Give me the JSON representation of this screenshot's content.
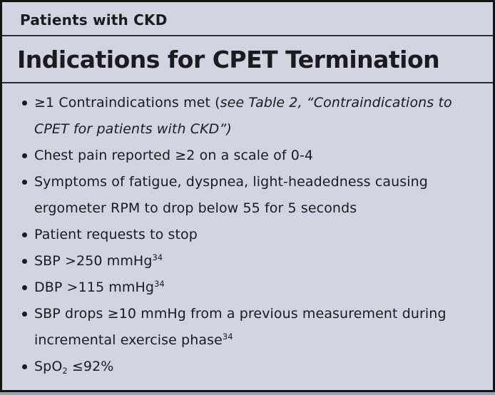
{
  "panel": {
    "header": "Patients with CKD",
    "title": "Indications for CPET Termination"
  },
  "list": {
    "items": [
      {
        "segments": [
          {
            "t": "≥1 Contraindications met ("
          },
          {
            "t": "see Table 2, “Contraindications to CPET for patients with CKD”)",
            "s": "i"
          }
        ]
      },
      {
        "segments": [
          {
            "t": "Chest pain reported ≥2 on a scale of 0-4"
          }
        ]
      },
      {
        "segments": [
          {
            "t": "Symptoms of fatigue, dyspnea, light-headedness causing ergometer RPM to drop below 55 for 5 seconds"
          }
        ]
      },
      {
        "segments": [
          {
            "t": "Patient requests to stop"
          }
        ]
      },
      {
        "segments": [
          {
            "t": "SBP >250 mmHg"
          },
          {
            "t": "34",
            "s": "sup"
          }
        ]
      },
      {
        "segments": [
          {
            "t": "DBP >115 mmHg"
          },
          {
            "t": "34",
            "s": "sup"
          }
        ]
      },
      {
        "segments": [
          {
            "t": "SBP drops ≥10 mmHg from a previous measurement during incremental exercise phase"
          },
          {
            "t": "34",
            "s": "sup"
          }
        ]
      },
      {
        "segments": [
          {
            "t": "SpO"
          },
          {
            "t": "2",
            "s": "sub"
          },
          {
            "t": " ≤92%"
          }
        ]
      }
    ]
  },
  "colors": {
    "background": "#d2d4e1",
    "border": "#141414",
    "text": "#1b1b1d"
  }
}
